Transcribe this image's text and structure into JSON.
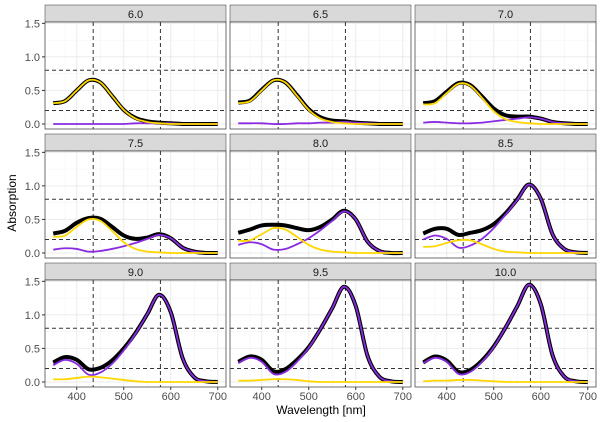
{
  "chart_data": {
    "type": "line",
    "xlabel": "Wavelength [nm]",
    "ylabel": "Absorption",
    "xlim": [
      332.5,
      717.5
    ],
    "ylim": [
      -0.075,
      1.52
    ],
    "xticks": [
      400,
      500,
      600,
      700
    ],
    "yticks": [
      0.0,
      0.5,
      1.0,
      1.5
    ],
    "ytick_labels": [
      "0.0",
      "0.5",
      "1.0",
      "1.5"
    ],
    "grid": true,
    "vlines": [
      435,
      578
    ],
    "hlines": [
      0.2,
      0.8
    ],
    "colors": {
      "total": "#000000",
      "acid": "#FFD700",
      "base": "#8A2BE2"
    },
    "x": [
      350,
      375,
      400,
      425,
      450,
      475,
      500,
      525,
      550,
      575,
      600,
      625,
      650,
      675,
      700
    ],
    "panels": [
      {
        "label": "6.0",
        "total": [
          0.31,
          0.34,
          0.5,
          0.65,
          0.62,
          0.42,
          0.21,
          0.09,
          0.04,
          0.02,
          0.01,
          0,
          0,
          0,
          0
        ],
        "acid": [
          0.31,
          0.34,
          0.5,
          0.65,
          0.62,
          0.42,
          0.21,
          0.08,
          0.03,
          0.01,
          0,
          0,
          0,
          0,
          0
        ],
        "base": [
          0,
          0,
          0,
          0,
          0,
          0,
          0,
          0.01,
          0.01,
          0.01,
          0.01,
          0,
          0,
          0,
          0
        ]
      },
      {
        "label": "6.5",
        "total": [
          0.32,
          0.35,
          0.51,
          0.65,
          0.62,
          0.43,
          0.22,
          0.1,
          0.05,
          0.04,
          0.02,
          0.01,
          0,
          0,
          0
        ],
        "acid": [
          0.31,
          0.34,
          0.5,
          0.65,
          0.62,
          0.42,
          0.21,
          0.08,
          0.03,
          0.01,
          0,
          0,
          0,
          0,
          0
        ],
        "base": [
          0.01,
          0.01,
          0.01,
          0,
          0,
          0.01,
          0.01,
          0.02,
          0.02,
          0.03,
          0.02,
          0.01,
          0,
          0,
          0
        ]
      },
      {
        "label": "7.0",
        "total": [
          0.31,
          0.34,
          0.48,
          0.61,
          0.58,
          0.41,
          0.23,
          0.13,
          0.11,
          0.11,
          0.08,
          0.03,
          0.01,
          0,
          0
        ],
        "acid": [
          0.29,
          0.31,
          0.46,
          0.6,
          0.57,
          0.39,
          0.19,
          0.07,
          0.03,
          0.01,
          0,
          0,
          0,
          0,
          0
        ],
        "base": [
          0.02,
          0.03,
          0.02,
          0.01,
          0.01,
          0.02,
          0.04,
          0.06,
          0.08,
          0.1,
          0.08,
          0.03,
          0.01,
          0,
          0
        ]
      },
      {
        "label": "7.5",
        "total": [
          0.29,
          0.33,
          0.45,
          0.52,
          0.51,
          0.39,
          0.26,
          0.21,
          0.23,
          0.28,
          0.22,
          0.08,
          0.02,
          0,
          0
        ],
        "acid": [
          0.24,
          0.26,
          0.39,
          0.5,
          0.48,
          0.33,
          0.16,
          0.06,
          0.02,
          0.01,
          0,
          0,
          0,
          0,
          0
        ],
        "base": [
          0.05,
          0.07,
          0.06,
          0.02,
          0.03,
          0.06,
          0.1,
          0.15,
          0.21,
          0.27,
          0.22,
          0.08,
          0.02,
          0,
          0
        ]
      },
      {
        "label": "8.0",
        "total": [
          0.3,
          0.35,
          0.41,
          0.42,
          0.41,
          0.37,
          0.34,
          0.39,
          0.5,
          0.63,
          0.5,
          0.17,
          0.03,
          0,
          0
        ],
        "acid": [
          0.18,
          0.19,
          0.28,
          0.37,
          0.35,
          0.24,
          0.12,
          0.05,
          0.02,
          0.01,
          0,
          0,
          0,
          0,
          0
        ],
        "base": [
          0.12,
          0.16,
          0.13,
          0.05,
          0.06,
          0.13,
          0.22,
          0.34,
          0.48,
          0.62,
          0.5,
          0.17,
          0.03,
          0,
          0
        ]
      },
      {
        "label": "8.5",
        "total": [
          0.29,
          0.36,
          0.36,
          0.27,
          0.3,
          0.34,
          0.43,
          0.59,
          0.8,
          1.02,
          0.81,
          0.28,
          0.06,
          0.01,
          0
        ],
        "acid": [
          0.09,
          0.1,
          0.15,
          0.19,
          0.19,
          0.13,
          0.06,
          0.02,
          0.01,
          0,
          0,
          0,
          0,
          0,
          0
        ],
        "base": [
          0.2,
          0.26,
          0.21,
          0.08,
          0.11,
          0.21,
          0.37,
          0.57,
          0.79,
          1.02,
          0.81,
          0.28,
          0.06,
          0.01,
          0
        ]
      },
      {
        "label": "9.0",
        "total": [
          0.29,
          0.37,
          0.33,
          0.19,
          0.21,
          0.32,
          0.5,
          0.73,
          1.01,
          1.3,
          1.04,
          0.36,
          0.07,
          0.01,
          0
        ],
        "acid": [
          0.04,
          0.04,
          0.06,
          0.08,
          0.07,
          0.05,
          0.03,
          0.01,
          0,
          0,
          0,
          0,
          0,
          0,
          0
        ],
        "base": [
          0.25,
          0.33,
          0.27,
          0.11,
          0.14,
          0.27,
          0.47,
          0.72,
          1.01,
          1.3,
          1.04,
          0.36,
          0.07,
          0.01,
          0
        ]
      },
      {
        "label": "9.5",
        "total": [
          0.3,
          0.38,
          0.33,
          0.16,
          0.19,
          0.33,
          0.52,
          0.79,
          1.1,
          1.42,
          1.13,
          0.39,
          0.08,
          0.01,
          0
        ],
        "acid": [
          0.02,
          0.02,
          0.03,
          0.04,
          0.04,
          0.03,
          0.01,
          0,
          0,
          0,
          0,
          0,
          0,
          0,
          0
        ],
        "base": [
          0.28,
          0.36,
          0.3,
          0.12,
          0.15,
          0.3,
          0.51,
          0.79,
          1.1,
          1.42,
          1.13,
          0.39,
          0.08,
          0.01,
          0
        ]
      },
      {
        "label": "10.0",
        "total": [
          0.29,
          0.38,
          0.32,
          0.15,
          0.18,
          0.32,
          0.53,
          0.81,
          1.13,
          1.45,
          1.16,
          0.4,
          0.08,
          0.01,
          0
        ],
        "acid": [
          0.01,
          0.02,
          0.02,
          0.03,
          0.03,
          0.02,
          0.01,
          0,
          0,
          0,
          0,
          0,
          0,
          0,
          0
        ],
        "base": [
          0.28,
          0.36,
          0.3,
          0.12,
          0.15,
          0.3,
          0.52,
          0.81,
          1.13,
          1.45,
          1.16,
          0.4,
          0.08,
          0.01,
          0
        ]
      }
    ]
  }
}
